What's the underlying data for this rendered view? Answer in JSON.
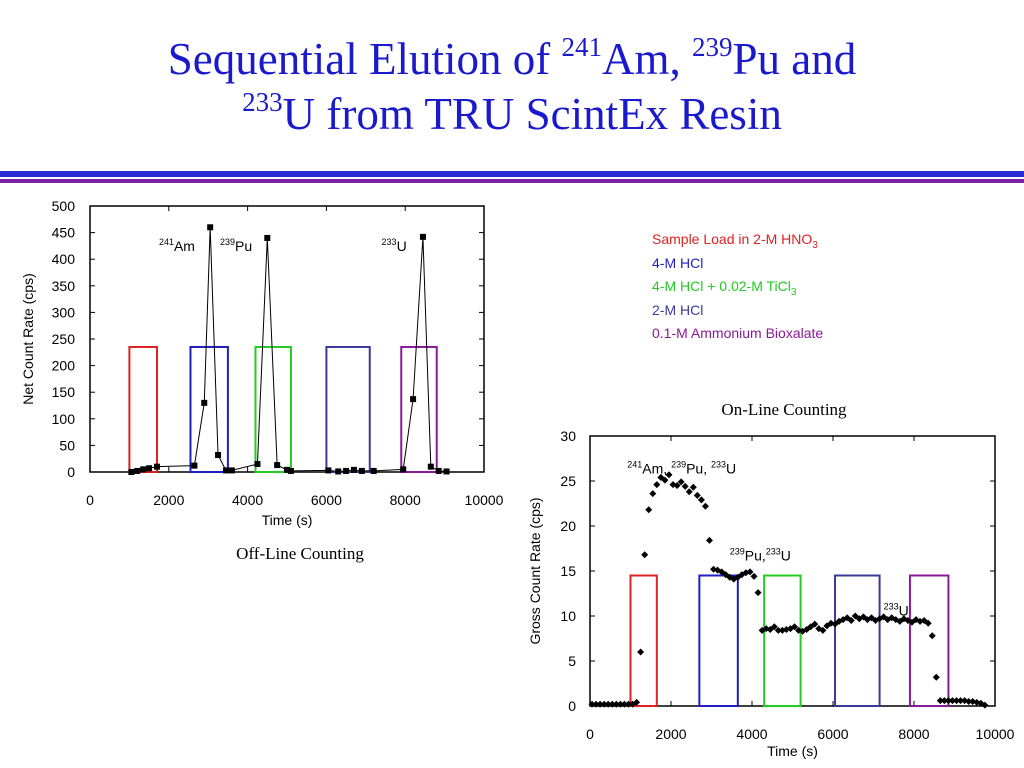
{
  "title": {
    "line1_pre": "Sequential Elution of ",
    "am_mass": "241",
    "am_sym": "Am,",
    "pu_mass": "239",
    "pu_sym": "Pu and",
    "u_mass": "233",
    "u_rest": "U from TRU ScintEx Resin"
  },
  "legend": [
    {
      "label_main": "Sample Load in 2-M HNO",
      "label_sub": "3",
      "color": "#dd2222"
    },
    {
      "label_main": "4-M HCl",
      "label_sub": "",
      "color": "#1f1fbf"
    },
    {
      "label_main": "4-M HCl + 0.02-M TiCl",
      "label_sub": "3",
      "color": "#22cc22"
    },
    {
      "label_main": "2-M HCl",
      "label_sub": "",
      "color": "#3a3a9a"
    },
    {
      "label_main": "0.1-M Ammonium Bioxalate",
      "label_sub": "",
      "color": "#8a1a9a"
    }
  ],
  "captions": {
    "offline": "Off-Line Counting",
    "online": "On-Line Counting"
  },
  "chart_data": [
    {
      "type": "line",
      "name": "offline",
      "xlabel": "Time (s)",
      "ylabel": "Net Count Rate (cps)",
      "xlim": [
        0,
        10000
      ],
      "ylim": [
        0,
        500
      ],
      "xticks": [
        0,
        2000,
        4000,
        6000,
        8000,
        10000
      ],
      "yticks": [
        0,
        50,
        100,
        150,
        200,
        250,
        300,
        350,
        400,
        450,
        500
      ],
      "grid": false,
      "x": [
        1050,
        1200,
        1350,
        1500,
        1700,
        2650,
        2900,
        3050,
        3250,
        3450,
        3600,
        4250,
        4500,
        4750,
        5000,
        5100,
        6050,
        6300,
        6500,
        6700,
        6900,
        7200,
        7950,
        8200,
        8450,
        8650,
        8850,
        9050
      ],
      "y": [
        0,
        2,
        5,
        7,
        10,
        12,
        130,
        460,
        32,
        3,
        3,
        15,
        440,
        13,
        4,
        2,
        3,
        1,
        2,
        4,
        2,
        2,
        5,
        137,
        442,
        10,
        2,
        1
      ],
      "windows": [
        {
          "x0": 1000,
          "x1": 1700,
          "height": 235,
          "color": "#dd2222"
        },
        {
          "x0": 2550,
          "x1": 3500,
          "height": 235,
          "color": "#1f1fbf"
        },
        {
          "x0": 4200,
          "x1": 5100,
          "height": 235,
          "color": "#22cc22"
        },
        {
          "x0": 6000,
          "x1": 7100,
          "height": 235,
          "color": "#3a3a9a"
        },
        {
          "x0": 7900,
          "x1": 8800,
          "height": 235,
          "color": "#8a1a9a"
        }
      ],
      "annotations": [
        {
          "sup": "241",
          "text": "Am",
          "x": 1750,
          "y": 430
        },
        {
          "sup": "239",
          "text": "Pu",
          "x": 3300,
          "y": 430
        },
        {
          "sup": "233",
          "text": "U",
          "x": 7400,
          "y": 430
        }
      ]
    },
    {
      "type": "scatter",
      "name": "online",
      "xlabel": "Time (s)",
      "ylabel": "Gross Count Rate (cps)",
      "xlim": [
        0,
        10000
      ],
      "ylim": [
        0,
        30
      ],
      "xticks": [
        0,
        2000,
        4000,
        6000,
        8000,
        10000
      ],
      "yticks": [
        0,
        5,
        10,
        15,
        20,
        25,
        30
      ],
      "grid": false,
      "x": [
        50,
        150,
        250,
        350,
        450,
        550,
        650,
        750,
        850,
        950,
        1050,
        1150,
        1250,
        1350,
        1450,
        1550,
        1650,
        1750,
        1850,
        1950,
        2050,
        2150,
        2250,
        2350,
        2450,
        2550,
        2650,
        2750,
        2850,
        2950,
        3050,
        3150,
        3250,
        3350,
        3450,
        3550,
        3650,
        3750,
        3850,
        3950,
        4050,
        4150,
        4250,
        4350,
        4450,
        4550,
        4650,
        4750,
        4850,
        4950,
        5050,
        5150,
        5250,
        5350,
        5450,
        5550,
        5650,
        5750,
        5850,
        5950,
        6050,
        6150,
        6250,
        6350,
        6450,
        6550,
        6650,
        6750,
        6850,
        6950,
        7050,
        7150,
        7250,
        7350,
        7450,
        7550,
        7650,
        7750,
        7850,
        7950,
        8050,
        8150,
        8250,
        8350,
        8450,
        8550,
        8650,
        8750,
        8850,
        8950,
        9050,
        9150,
        9250,
        9350,
        9450,
        9550,
        9650,
        9750
      ],
      "y": [
        0.2,
        0.2,
        0.2,
        0.2,
        0.2,
        0.2,
        0.2,
        0.2,
        0.2,
        0.2,
        0.2,
        0.4,
        6,
        16.8,
        21.8,
        23.6,
        24.6,
        25.4,
        25.1,
        25.7,
        24.6,
        24.5,
        24.9,
        24.4,
        23.8,
        24.3,
        23.4,
        22.9,
        22.2,
        18.4,
        15.2,
        15.1,
        14.9,
        14.6,
        14.3,
        14.1,
        14.3,
        14.6,
        14.8,
        14.9,
        14.4,
        12.6,
        8.4,
        8.6,
        8.5,
        8.8,
        8.4,
        8.4,
        8.5,
        8.6,
        8.8,
        8.4,
        8.3,
        8.5,
        8.8,
        9.1,
        8.6,
        8.4,
        8.9,
        9.2,
        9.1,
        9.4,
        9.6,
        9.8,
        9.5,
        10,
        9.7,
        9.9,
        9.6,
        9.8,
        9.5,
        9.7,
        9.9,
        9.6,
        9.8,
        9.6,
        9.4,
        9.7,
        9.5,
        9.3,
        9.6,
        9.4,
        9.5,
        9.2,
        7.8,
        3.2,
        0.6,
        0.6,
        0.6,
        0.6,
        0.6,
        0.6,
        0.6,
        0.5,
        0.5,
        0.4,
        0.3,
        0.1
      ],
      "windows": [
        {
          "x0": 1000,
          "x1": 1650,
          "height": 14.5,
          "color": "#dd2222"
        },
        {
          "x0": 2700,
          "x1": 3650,
          "height": 14.5,
          "color": "#1f1fbf"
        },
        {
          "x0": 4300,
          "x1": 5200,
          "height": 14.5,
          "color": "#22cc22"
        },
        {
          "x0": 6050,
          "x1": 7150,
          "height": 14.5,
          "color": "#3a3a9a"
        },
        {
          "x0": 7900,
          "x1": 8850,
          "height": 14.5,
          "color": "#8a1a9a"
        }
      ],
      "annotations": [
        {
          "parts": [
            {
              "sup": "241",
              "text": "Am, "
            },
            {
              "sup": "239",
              "text": "Pu, "
            },
            {
              "sup": "233",
              "text": "U"
            }
          ],
          "x": 920,
          "y": 26.4
        },
        {
          "parts": [
            {
              "sup": "239",
              "text": "Pu,"
            },
            {
              "sup": "233",
              "text": "U"
            }
          ],
          "x": 3450,
          "y": 16.7
        },
        {
          "parts": [
            {
              "sup": "233",
              "text": "U"
            }
          ],
          "x": 7250,
          "y": 10.6
        }
      ]
    }
  ]
}
